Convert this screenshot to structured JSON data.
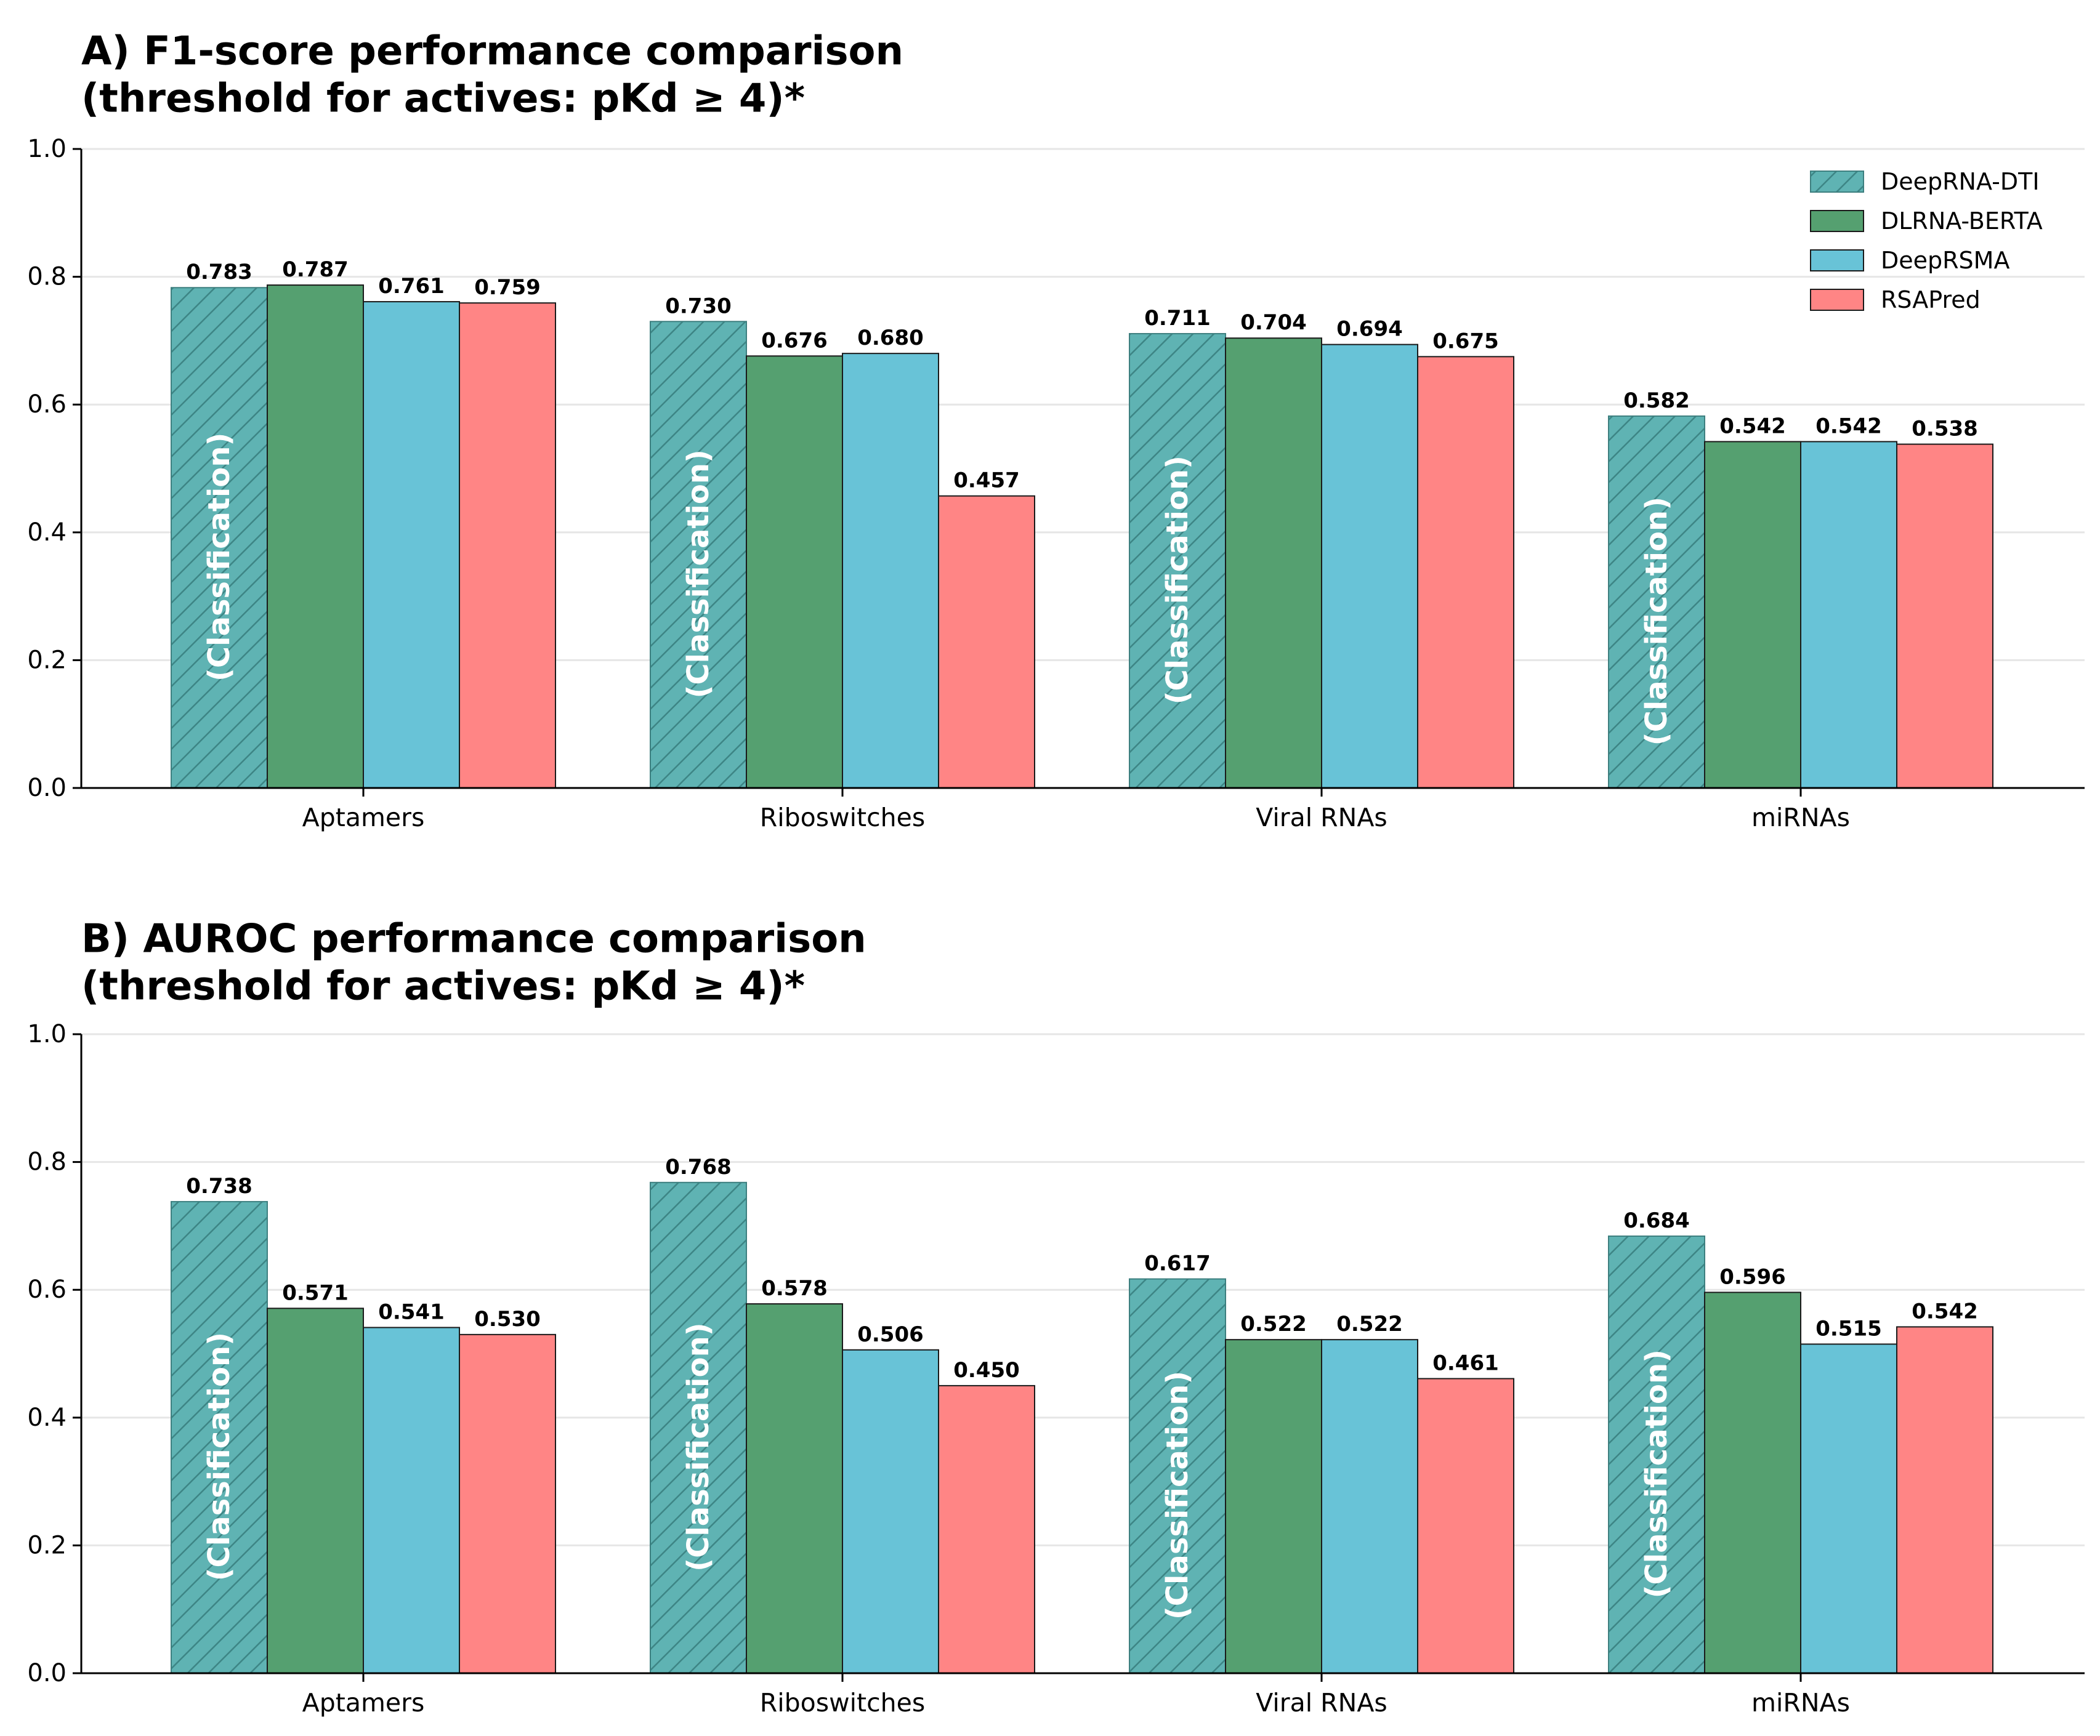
{
  "chart_data": [
    {
      "type": "bar",
      "title_line1": "A) F1-score performance comparison",
      "title_line2": "(threshold for actives: pKd ≥ 4)*",
      "categories": [
        "Aptamers",
        "Riboswitches",
        "Viral RNAs",
        "miRNAs"
      ],
      "ylim": [
        0,
        1.0
      ],
      "yticks": [
        "0.0",
        "0.2",
        "0.4",
        "0.6",
        "0.8",
        "1.0"
      ],
      "grid": true,
      "legend_position": "top-right",
      "bar_annotation": "(Classification)",
      "series": [
        {
          "name": "DeepRNA-DTI",
          "color": "#5fb3b3",
          "hatch": true,
          "values": [
            0.783,
            0.73,
            0.711,
            0.582
          ]
        },
        {
          "name": "DLRNA-BERTA",
          "color": "#55a070",
          "hatch": false,
          "values": [
            0.787,
            0.676,
            0.704,
            0.542
          ]
        },
        {
          "name": "DeepRSMA",
          "color": "#68c3d7",
          "hatch": false,
          "values": [
            0.761,
            0.68,
            0.694,
            0.542
          ]
        },
        {
          "name": "RSAPred",
          "color": "#ff8585",
          "hatch": false,
          "values": [
            0.759,
            0.457,
            0.675,
            0.538
          ]
        }
      ]
    },
    {
      "type": "bar",
      "title_line1": "B) AUROC performance comparison",
      "title_line2": "(threshold for actives: pKd ≥ 4)*",
      "categories": [
        "Aptamers",
        "Riboswitches",
        "Viral RNAs",
        "miRNAs"
      ],
      "ylim": [
        0,
        1.0
      ],
      "yticks": [
        "0.0",
        "0.2",
        "0.4",
        "0.6",
        "0.8",
        "1.0"
      ],
      "grid": true,
      "legend_position": "none",
      "bar_annotation": "(Classification)",
      "series": [
        {
          "name": "DeepRNA-DTI",
          "color": "#5fb3b3",
          "hatch": true,
          "values": [
            0.738,
            0.768,
            0.617,
            0.684
          ]
        },
        {
          "name": "DLRNA-BERTA",
          "color": "#55a070",
          "hatch": false,
          "values": [
            0.571,
            0.578,
            0.522,
            0.596
          ]
        },
        {
          "name": "DeepRSMA",
          "color": "#68c3d7",
          "hatch": false,
          "values": [
            0.541,
            0.506,
            0.522,
            0.515
          ]
        },
        {
          "name": "RSAPred",
          "color": "#ff8585",
          "hatch": false,
          "values": [
            0.53,
            0.45,
            0.461,
            0.542
          ]
        }
      ]
    }
  ]
}
